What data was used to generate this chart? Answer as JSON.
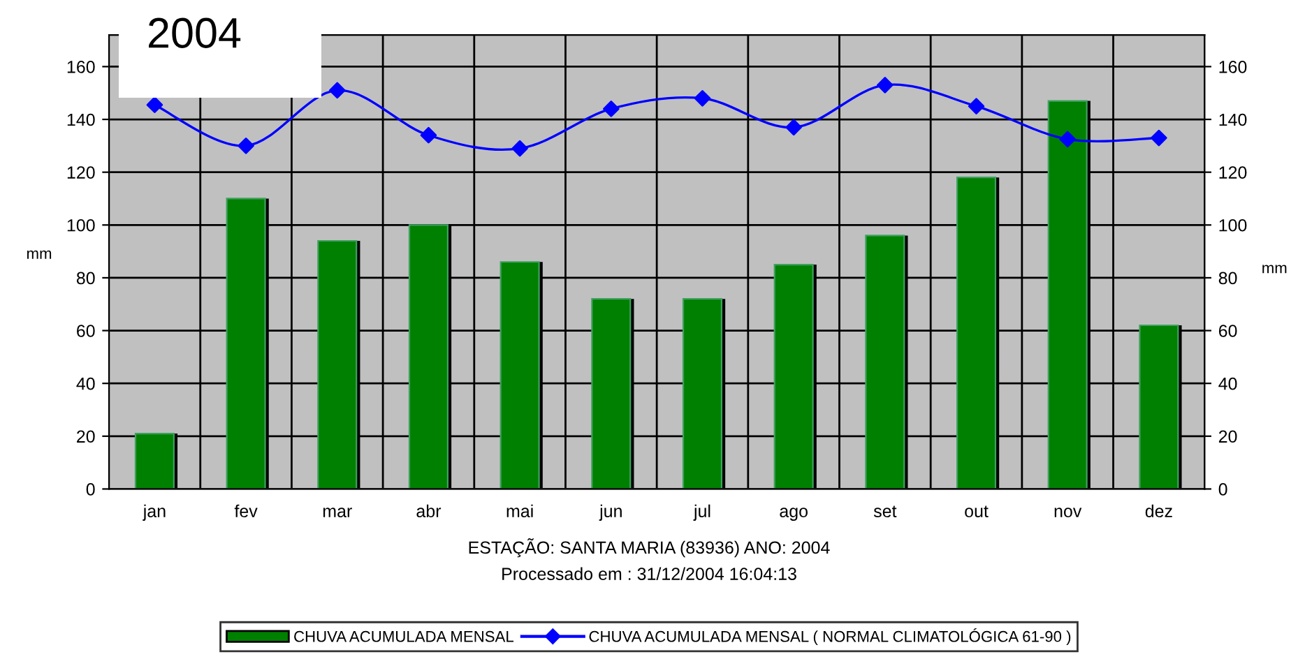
{
  "chart_data": {
    "type": "bar",
    "title": "2004",
    "ylabel": "mm",
    "y2label": "mm",
    "categories": [
      "jan",
      "fev",
      "mar",
      "abr",
      "mai",
      "jun",
      "jul",
      "ago",
      "set",
      "out",
      "nov",
      "dez"
    ],
    "series": [
      {
        "name": "CHUVA ACUMULADA MENSAL",
        "type": "bar",
        "color": "#008000",
        "values": [
          21,
          110,
          94,
          100,
          86,
          72,
          72,
          85,
          96,
          118,
          147,
          62
        ]
      },
      {
        "name": "CHUVA ACUMULADA MENSAL ( NORMAL CLIMATOLÓGICA 61-90 )",
        "type": "line",
        "color": "#0000ff",
        "marker": "diamond",
        "values": [
          145.5,
          130,
          151,
          134,
          129,
          144,
          148,
          137,
          153,
          145,
          132.5,
          133
        ]
      }
    ],
    "ylim": [
      0,
      172
    ],
    "yticks": [
      0,
      20,
      40,
      60,
      80,
      100,
      120,
      140,
      160
    ],
    "y2lim": [
      0,
      172
    ],
    "y2ticks": [
      0,
      20,
      40,
      60,
      80,
      100,
      120,
      140,
      160
    ],
    "grid": true,
    "legend": "bottom",
    "annotations": [
      "ESTAÇÃO: SANTA MARIA (83936) ANO: 2004",
      "Processado em : 31/12/2004 16:04:13"
    ]
  }
}
